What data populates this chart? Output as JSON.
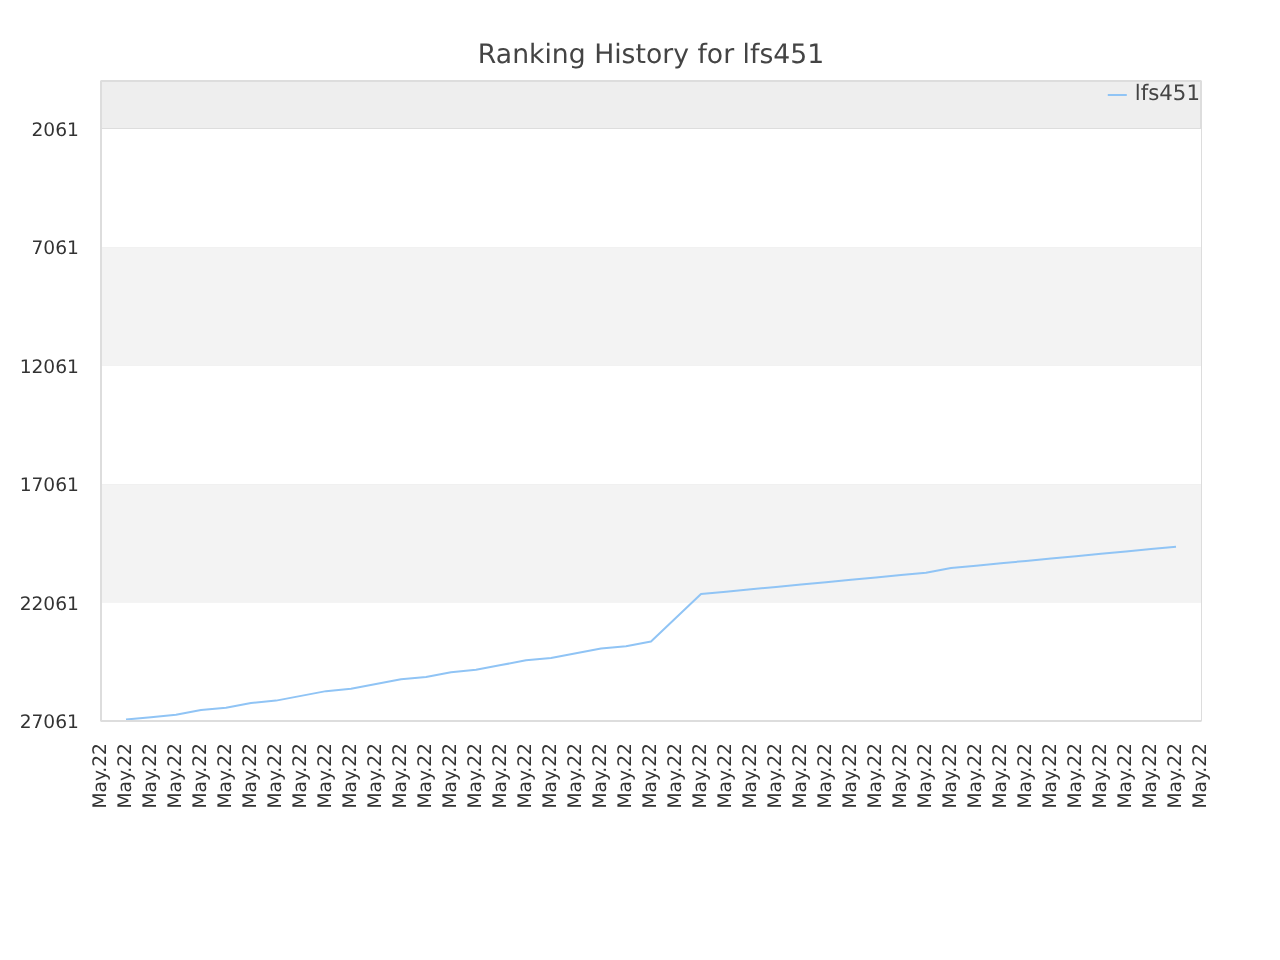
{
  "chart_data": {
    "type": "line",
    "title": "Ranking History for lfs451",
    "categories": [
      "May.22",
      "May.22",
      "May.22",
      "May.22",
      "May.22",
      "May.22",
      "May.22",
      "May.22",
      "May.22",
      "May.22",
      "May.22",
      "May.22",
      "May.22",
      "May.22",
      "May.22",
      "May.22",
      "May.22",
      "May.22",
      "May.22",
      "May.22",
      "May.22",
      "May.22",
      "May.22",
      "May.22",
      "May.22",
      "May.22",
      "May.22",
      "May.22",
      "May.22",
      "May.22",
      "May.22",
      "May.22",
      "May.22",
      "May.22",
      "May.22",
      "May.22",
      "May.22",
      "May.22",
      "May.22",
      "May.22",
      "May.22",
      "May.22",
      "May.22",
      "May.22",
      "May.22"
    ],
    "series": [
      {
        "name": "lfs451",
        "color": "#90c4f5",
        "values": [
          null,
          27000,
          26900,
          26800,
          26600,
          26500,
          26300,
          26200,
          26000,
          25800,
          25700,
          25500,
          25300,
          25200,
          25000,
          24900,
          24700,
          24500,
          24400,
          24200,
          24000,
          23900,
          23700,
          22700,
          21700,
          21600,
          21500,
          21400,
          21300,
          21200,
          21100,
          21000,
          20900,
          20800,
          20600,
          20500,
          20400,
          20300,
          20200,
          20100,
          20000,
          19900,
          19800,
          19700,
          null
        ]
      }
    ],
    "ylim": [
      27061,
      34
    ],
    "yticks": [
      2061,
      7061,
      12061,
      17061,
      22061,
      27061
    ],
    "grid": "y",
    "legend": "top right"
  }
}
